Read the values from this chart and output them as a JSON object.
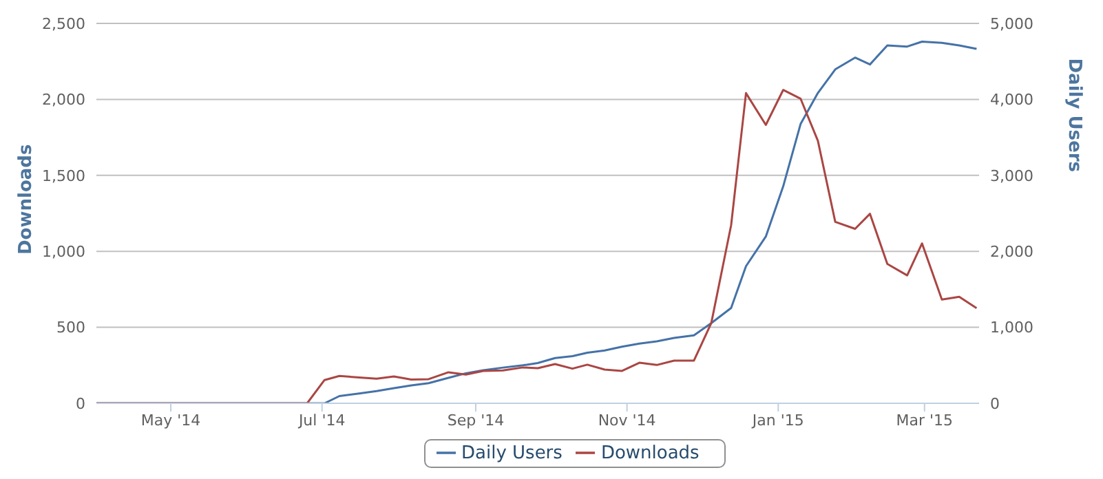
{
  "chart_data": {
    "type": "line",
    "ylabel": "Downloads",
    "y2label": "Daily Users",
    "x": [
      "2014-04-01",
      "2014-06-25",
      "2014-07-02",
      "2014-07-08",
      "2014-07-16",
      "2014-07-23",
      "2014-07-30",
      "2014-08-06",
      "2014-08-13",
      "2014-08-21",
      "2014-08-28",
      "2014-09-04",
      "2014-09-12",
      "2014-09-20",
      "2014-09-26",
      "2014-10-03",
      "2014-10-10",
      "2014-10-16",
      "2014-10-23",
      "2014-10-30",
      "2014-11-06",
      "2014-11-13",
      "2014-11-20",
      "2014-11-28",
      "2014-12-05",
      "2014-12-13",
      "2014-12-19",
      "2014-12-27",
      "2015-01-03",
      "2015-01-10",
      "2015-01-17",
      "2015-01-24",
      "2015-02-01",
      "2015-02-07",
      "2015-02-14",
      "2015-02-22",
      "2015-02-28",
      "2015-03-08",
      "2015-03-15",
      "2015-03-22"
    ],
    "series": [
      {
        "name": "Daily Users",
        "color": "#4572a7",
        "axis": "y2",
        "values": [
          0,
          0,
          0,
          95,
          130,
          160,
          200,
          235,
          265,
          335,
          395,
          435,
          470,
          500,
          530,
          595,
          620,
          665,
          695,
          745,
          785,
          815,
          860,
          895,
          1055,
          1255,
          1805,
          2195,
          2855,
          3675,
          4085,
          4395,
          4550,
          4460,
          4710,
          4695,
          4760,
          4745,
          4710,
          4665
        ]
      },
      {
        "name": "Downloads",
        "color": "#aa4643",
        "values": [
          0,
          0,
          153,
          180,
          170,
          162,
          177,
          156,
          159,
          204,
          189,
          213,
          216,
          236,
          231,
          258,
          228,
          254,
          222,
          213,
          267,
          252,
          281,
          281,
          528,
          1172,
          2041,
          1832,
          2062,
          2005,
          1727,
          1194,
          1148,
          1247,
          917,
          842,
          1052,
          683,
          701,
          626
        ]
      }
    ],
    "xlim": [
      "2014-04-01",
      "2015-03-23"
    ],
    "xticks": [
      {
        "value": "2014-05-01",
        "label": "May '14"
      },
      {
        "value": "2014-07-01",
        "label": "Jul '14"
      },
      {
        "value": "2014-09-01",
        "label": "Sep '14"
      },
      {
        "value": "2014-11-01",
        "label": "Nov '14"
      },
      {
        "value": "2015-01-01",
        "label": "Jan '15"
      },
      {
        "value": "2015-03-01",
        "label": "Mar '15"
      }
    ],
    "ylim": [
      0,
      2500
    ],
    "yticks": [
      {
        "value": 0,
        "label": "0"
      },
      {
        "value": 500,
        "label": "500"
      },
      {
        "value": 1000,
        "label": "1,000"
      },
      {
        "value": 1500,
        "label": "1,500"
      },
      {
        "value": 2000,
        "label": "2,000"
      },
      {
        "value": 2500,
        "label": "2,500"
      }
    ],
    "y2lim": [
      0,
      5000
    ],
    "y2ticks": [
      {
        "value": 0,
        "label": "0"
      },
      {
        "value": 1000,
        "label": "1,000"
      },
      {
        "value": 2000,
        "label": "2,000"
      },
      {
        "value": 3000,
        "label": "3,000"
      },
      {
        "value": 4000,
        "label": "4,000"
      },
      {
        "value": 5000,
        "label": "5,000"
      }
    ],
    "grid": "y",
    "legend": "bottom",
    "marker": "none",
    "line_style": "solid"
  }
}
